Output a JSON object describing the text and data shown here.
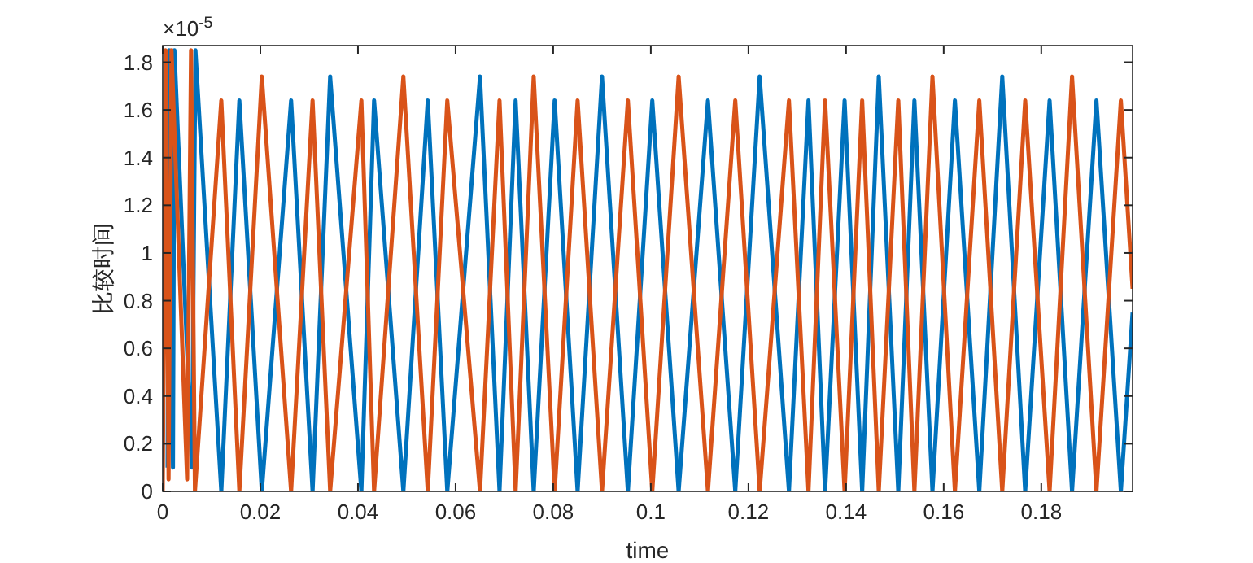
{
  "chart_data": {
    "type": "line",
    "xlabel": "time",
    "ylabel": "比较时间",
    "annotations": [
      "×10$^{-5}$"
    ],
    "xlim": [
      0,
      0.1987
    ],
    "xticks": [
      0,
      0.02,
      0.04,
      0.06,
      0.08,
      0.1,
      0.12,
      0.14,
      0.16,
      0.18
    ],
    "ylim": [
      0,
      1.87
    ],
    "yticks": [
      0,
      0.2,
      0.4,
      0.6,
      0.8,
      1,
      1.2,
      1.4,
      1.6,
      1.8
    ],
    "grid": false,
    "line_style": "solid",
    "series": [
      {
        "color": "#0072bd",
        "x": [
          0.001,
          0.0013,
          0.0021,
          0.0024,
          0.006,
          0.0067,
          0.012,
          0.0157,
          0.0203,
          0.0263,
          0.0307,
          0.0343,
          0.0407,
          0.0433,
          0.0493,
          0.0543,
          0.0583,
          0.065,
          0.069,
          0.0723,
          0.076,
          0.0803,
          0.085,
          0.09,
          0.0953,
          0.1003,
          0.1057,
          0.1117,
          0.1173,
          0.1223,
          0.1283,
          0.1323,
          0.1357,
          0.1397,
          0.1433,
          0.1467,
          0.1507,
          0.154,
          0.1577,
          0.1623,
          0.1673,
          0.172,
          0.1767,
          0.1817,
          0.1863,
          0.1913,
          0.1963,
          0.1987
        ],
        "values": [
          0.1,
          1.85,
          0.1,
          1.85,
          0.1,
          1.85,
          0,
          1.64,
          0,
          1.64,
          0,
          1.74,
          0,
          1.64,
          0,
          1.64,
          0,
          1.74,
          0,
          1.64,
          0,
          1.64,
          0,
          1.74,
          0,
          1.64,
          0,
          1.64,
          0,
          1.74,
          0,
          1.64,
          0,
          1.64,
          0,
          1.74,
          0,
          1.64,
          0,
          1.64,
          0,
          1.74,
          0,
          1.64,
          0,
          1.64,
          0,
          0.75
        ]
      },
      {
        "color": "#d95319",
        "x": [
          0,
          0.0006,
          0.0012,
          0.0018,
          0.005,
          0.0058,
          0.0066,
          0.012,
          0.0157,
          0.0203,
          0.0263,
          0.0307,
          0.0343,
          0.0407,
          0.0433,
          0.0493,
          0.0543,
          0.0583,
          0.065,
          0.069,
          0.0723,
          0.076,
          0.0803,
          0.085,
          0.09,
          0.0953,
          0.1003,
          0.1057,
          0.1117,
          0.1173,
          0.1223,
          0.1283,
          0.1323,
          0.1357,
          0.1397,
          0.1433,
          0.1467,
          0.1507,
          0.154,
          0.1577,
          0.1623,
          0.1673,
          0.172,
          0.1767,
          0.1817,
          0.1863,
          0.1913,
          0.1963,
          0.1987
        ],
        "values": [
          0,
          1.85,
          0.05,
          1.85,
          0.05,
          1.85,
          0,
          1.64,
          0,
          1.74,
          0,
          1.64,
          0,
          1.64,
          0,
          1.74,
          0,
          1.64,
          0,
          1.64,
          0,
          1.74,
          0,
          1.64,
          0,
          1.64,
          0,
          1.74,
          0,
          1.64,
          0,
          1.64,
          0,
          1.64,
          0,
          1.64,
          0,
          1.64,
          0,
          1.74,
          0,
          1.64,
          0,
          1.64,
          0,
          1.74,
          0,
          1.64,
          0.85
        ]
      }
    ]
  }
}
